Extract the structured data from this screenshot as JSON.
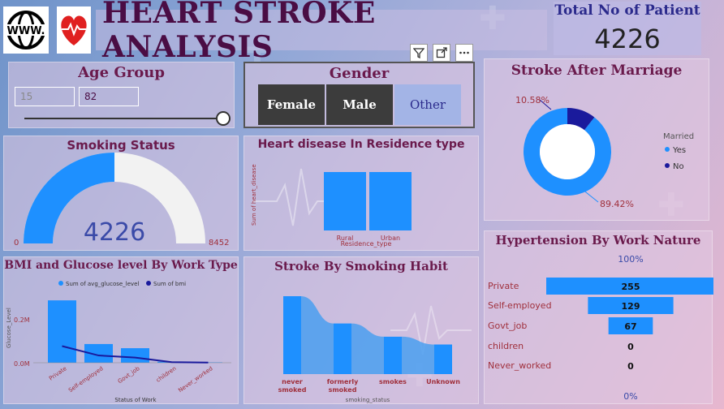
{
  "header": {
    "title": "HEART STROKE ANALYSIS",
    "www_logo_text": "WWW."
  },
  "total": {
    "label": "Total No of Patient",
    "value": "4226"
  },
  "age_group": {
    "title": "Age Group",
    "min": "15",
    "max": "82"
  },
  "gender": {
    "title": "Gender",
    "options": [
      "Female",
      "Male",
      "Other"
    ],
    "selected": "Other"
  },
  "smoking_status": {
    "title": "Smoking Status",
    "value": "4226",
    "min_label": "0",
    "max_label": "8452"
  },
  "heart_disease": {
    "title": "Heart disease In Residence type",
    "ylabel": "Sum of heart_disease",
    "xlabel": "Residence_type"
  },
  "marriage": {
    "title": "Stroke After Marriage",
    "legend_title": "Married",
    "legend": [
      "Yes",
      "No"
    ],
    "label_no": "10.58%",
    "label_yes": "89.42%"
  },
  "bmi": {
    "title": "BMI and Glucose level By Work Type",
    "legend": [
      "Sum of avg_glucose_level",
      "Sum of bmi"
    ],
    "ylabel": "Glucose_Level",
    "xlabel": "Status of Work",
    "yticks": [
      "0.2M",
      "0.0M"
    ]
  },
  "smoking_habit": {
    "title": "Stroke By Smoking Habit",
    "xlabel": "smoking_status"
  },
  "hypertension": {
    "title": "Hypertension By Work Nature",
    "top_pct": "100%",
    "bottom_pct": "0%"
  },
  "chart_data": [
    {
      "type": "bar",
      "title": "Heart disease In Residence type",
      "categories": [
        "Rural",
        "Urban"
      ],
      "values": [
        100,
        100
      ],
      "xlabel": "Residence_type",
      "ylabel": "Sum of heart_disease"
    },
    {
      "type": "pie",
      "title": "Stroke After Marriage",
      "categories": [
        "Yes",
        "No"
      ],
      "values": [
        89.42,
        10.58
      ],
      "colors": [
        "#1e90ff",
        "#1a1a9c"
      ]
    },
    {
      "type": "bar",
      "title": "BMI and Glucose level By Work Type",
      "categories": [
        "Private",
        "Self-employed",
        "Govt_job",
        "children",
        "Never_worked"
      ],
      "series": [
        {
          "name": "Sum of avg_glucose_level",
          "values": [
            0.3,
            0.09,
            0.07,
            0.005,
            0.002
          ]
        },
        {
          "name": "Sum of bmi",
          "values": [
            0.08,
            0.035,
            0.025,
            0.003,
            0.001
          ]
        }
      ],
      "xlabel": "Status of Work",
      "ylabel": "Glucose_Level",
      "ylim": [
        0,
        0.32
      ]
    },
    {
      "type": "area",
      "title": "Stroke By Smoking Habit",
      "categories": [
        "never smoked",
        "formerly smoked",
        "smokes",
        "Unknown"
      ],
      "values": [
        100,
        65,
        48,
        38
      ],
      "xlabel": "smoking_status"
    },
    {
      "type": "bar",
      "title": "Hypertension By Work Nature",
      "categories": [
        "Private",
        "Self-employed",
        "Govt_job",
        "children",
        "Never_worked"
      ],
      "values": [
        255,
        129,
        67,
        0,
        0
      ]
    },
    {
      "type": "gauge",
      "title": "Smoking Status",
      "value": 4226,
      "min": 0,
      "max": 8452
    }
  ],
  "colors": {
    "accent": "#1e90ff",
    "dark_series": "#1a1a9c",
    "title": "#6a1a4c"
  }
}
